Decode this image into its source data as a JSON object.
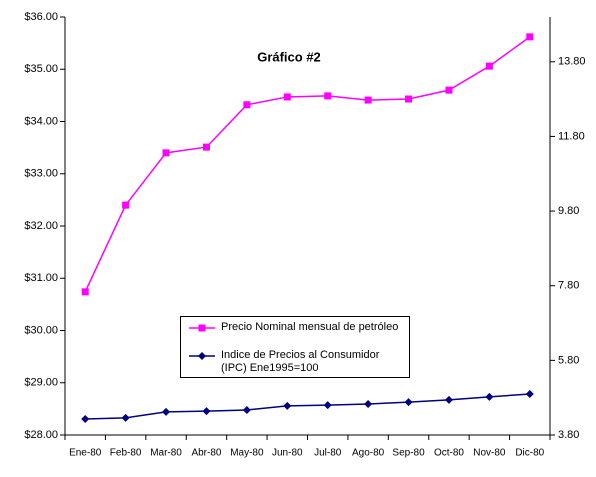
{
  "chart_data": {
    "type": "line",
    "title": "Gráfico #2",
    "categories": [
      "Ene-80",
      "Feb-80",
      "Mar-80",
      "Abr-80",
      "May-80",
      "Jun-80",
      "Jul-80",
      "Ago-80",
      "Sep-80",
      "Oct-80",
      "Nov-80",
      "Dic-80"
    ],
    "series": [
      {
        "name": "Precio Nominal mensual de petróleo",
        "color": "#ff00ff",
        "marker": "square",
        "axis": "y",
        "values": [
          30.74,
          32.4,
          33.4,
          33.51,
          34.32,
          34.47,
          34.49,
          34.41,
          34.43,
          34.6,
          35.06,
          35.62
        ]
      },
      {
        "name": "Indice de Precios al Consumidor (IPC) Ene1995=100",
        "color": "#000080",
        "marker": "diamond",
        "axis": "y2",
        "values": [
          4.23,
          4.26,
          4.42,
          4.44,
          4.47,
          4.58,
          4.6,
          4.63,
          4.68,
          4.74,
          4.82,
          4.9
        ]
      }
    ],
    "ylim": [
      28,
      36
    ],
    "yticks": [
      {
        "value": 28,
        "label": "$28.00"
      },
      {
        "value": 29,
        "label": "$29.00"
      },
      {
        "value": 30,
        "label": "$30.00"
      },
      {
        "value": 31,
        "label": "$31.00"
      },
      {
        "value": 32,
        "label": "$32.00"
      },
      {
        "value": 33,
        "label": "$33.00"
      },
      {
        "value": 34,
        "label": "$34.00"
      },
      {
        "value": 35,
        "label": "$35.00"
      },
      {
        "value": 36,
        "label": "$36.00"
      }
    ],
    "y2lim": [
      3.8,
      15.0
    ],
    "y2ticks": [
      {
        "value": 3.8,
        "label": "3.80"
      },
      {
        "value": 5.8,
        "label": "5.80"
      },
      {
        "value": 7.8,
        "label": "7.80"
      },
      {
        "value": 9.8,
        "label": "9.80"
      },
      {
        "value": 11.8,
        "label": "11.80"
      },
      {
        "value": 13.8,
        "label": "13.80"
      }
    ],
    "grid": false
  }
}
